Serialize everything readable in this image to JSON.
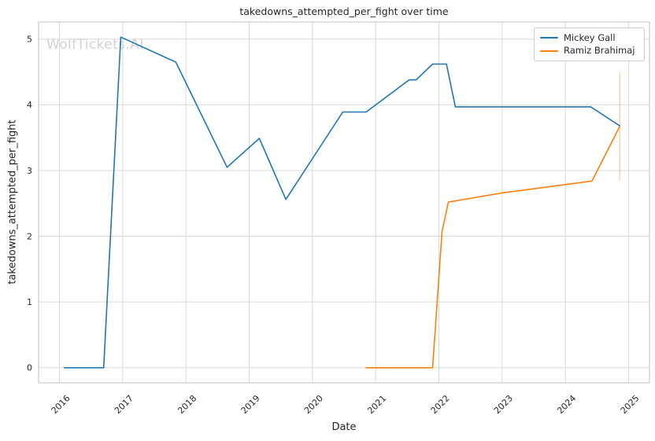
{
  "chart_data": {
    "type": "line",
    "title": "takedowns_attempted_per_fight over time",
    "xlabel": "Date",
    "ylabel": "takedowns_attempted_per_fight",
    "watermark": "WolfTickets.AI",
    "grid": true,
    "legend_position": "upper right",
    "x_tick_values": [
      2016,
      2017,
      2018,
      2019,
      2020,
      2021,
      2022,
      2023,
      2024,
      2025
    ],
    "x_tick_labels": [
      "2016",
      "2017",
      "2018",
      "2019",
      "2020",
      "2021",
      "2022",
      "2023",
      "2024",
      "2025"
    ],
    "y_tick_values": [
      0,
      1,
      2,
      3,
      4,
      5
    ],
    "y_tick_labels": [
      "0",
      "1",
      "2",
      "3",
      "4",
      "5"
    ],
    "xlim": [
      2015.67,
      2025.33
    ],
    "ylim": [
      -0.23,
      5.26
    ],
    "colors": {
      "grid": "#d9d9d9",
      "spine": "#cccccc",
      "text": "#262626",
      "watermark": "#d2d2d2",
      "background": "#ffffff"
    },
    "series": [
      {
        "name": "Mickey Gall",
        "color": "#1f77b4",
        "x": [
          2016.08,
          2016.7,
          2016.97,
          2017.84,
          2018.65,
          2019.16,
          2019.58,
          2020.48,
          2020.85,
          2021.53,
          2021.64,
          2021.9,
          2022.12,
          2022.26,
          2024.4,
          2024.86
        ],
        "y": [
          0.0,
          0.0,
          5.03,
          4.65,
          3.05,
          3.49,
          2.56,
          3.89,
          3.89,
          4.38,
          4.38,
          4.62,
          4.62,
          3.97,
          3.97,
          3.68
        ]
      },
      {
        "name": "Ramiz Brahimaj",
        "color": "#ff7f0e",
        "x": [
          2020.85,
          2021.9,
          2022.05,
          2022.15,
          2023.0,
          2024.42,
          2024.86
        ],
        "y": [
          0.0,
          0.0,
          2.07,
          2.52,
          2.66,
          2.84,
          3.67
        ],
        "error_bar": {
          "x": 2024.86,
          "y_min": 2.85,
          "y_max": 4.49,
          "opacity": 0.35
        }
      }
    ]
  }
}
